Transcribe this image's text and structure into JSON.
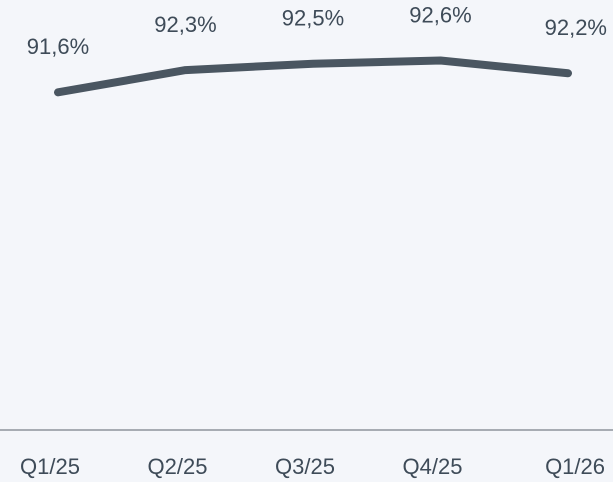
{
  "chart_data": {
    "type": "line",
    "categories": [
      "Q1/25",
      "Q2/25",
      "Q3/25",
      "Q4/25",
      "Q1/26"
    ],
    "values": [
      91.6,
      92.3,
      92.5,
      92.6,
      92.2
    ],
    "value_labels": [
      "91,6%",
      "92,3%",
      "92,5%",
      "92,6%",
      "92,2%"
    ],
    "color": "#4a5661",
    "ylim": [
      81,
      94.5
    ]
  }
}
